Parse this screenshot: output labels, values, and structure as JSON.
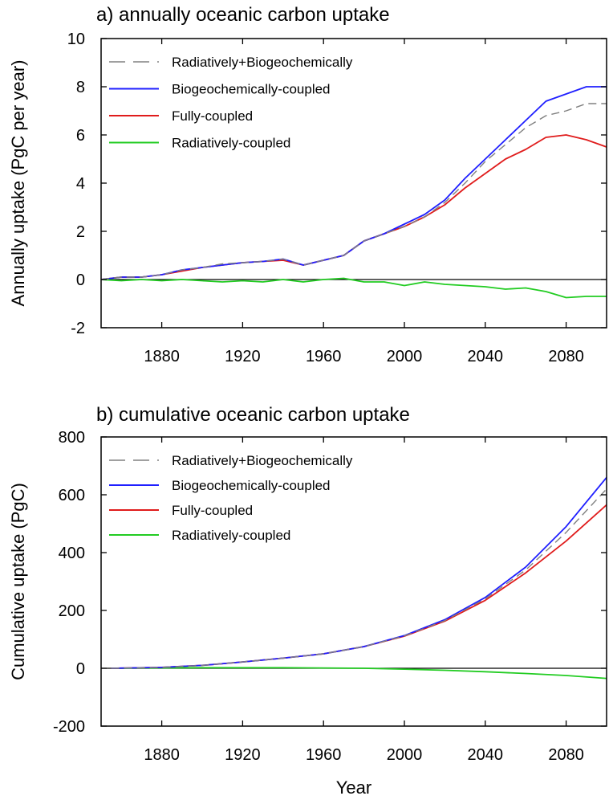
{
  "colors": {
    "rad_bio": "#808080",
    "bio": "#1f1fff",
    "full": "#e01c1c",
    "rad": "#22cc22",
    "axis": "#000000"
  },
  "chart_data": [
    {
      "type": "line",
      "title": "a) annually  oceanic carbon uptake",
      "ylabel": "Annually uptake (PgC per year)",
      "xlabel": "",
      "xlim": [
        1850,
        2100
      ],
      "ylim": [
        -2,
        10
      ],
      "xticks": [
        1880,
        1920,
        1960,
        2000,
        2040,
        2080
      ],
      "yticks": [
        -2,
        0,
        2,
        4,
        6,
        8,
        10
      ],
      "zero_line": true,
      "legend_position": "top-left",
      "series": [
        {
          "name": "Radiatively+Biogeochemically",
          "color_key": "rad_bio",
          "dashed": true,
          "points": [
            [
              1850,
              0.0
            ],
            [
              1860,
              0.1
            ],
            [
              1870,
              0.1
            ],
            [
              1880,
              0.2
            ],
            [
              1890,
              0.4
            ],
            [
              1900,
              0.5
            ],
            [
              1910,
              0.65
            ],
            [
              1920,
              0.7
            ],
            [
              1930,
              0.75
            ],
            [
              1940,
              0.85
            ],
            [
              1950,
              0.6
            ],
            [
              1960,
              0.8
            ],
            [
              1970,
              1.0
            ],
            [
              1980,
              1.6
            ],
            [
              1990,
              1.9
            ],
            [
              2000,
              2.2
            ],
            [
              2010,
              2.6
            ],
            [
              2020,
              3.2
            ],
            [
              2030,
              4.0
            ],
            [
              2040,
              4.9
            ],
            [
              2050,
              5.6
            ],
            [
              2060,
              6.3
            ],
            [
              2070,
              6.8
            ],
            [
              2080,
              7.0
            ],
            [
              2090,
              7.3
            ],
            [
              2100,
              7.3
            ]
          ]
        },
        {
          "name": "Biogeochemically-coupled",
          "color_key": "bio",
          "dashed": false,
          "points": [
            [
              1850,
              0.0
            ],
            [
              1860,
              0.1
            ],
            [
              1870,
              0.1
            ],
            [
              1880,
              0.2
            ],
            [
              1890,
              0.4
            ],
            [
              1900,
              0.5
            ],
            [
              1910,
              0.6
            ],
            [
              1920,
              0.7
            ],
            [
              1930,
              0.75
            ],
            [
              1940,
              0.85
            ],
            [
              1950,
              0.6
            ],
            [
              1960,
              0.8
            ],
            [
              1970,
              1.0
            ],
            [
              1980,
              1.6
            ],
            [
              1990,
              1.9
            ],
            [
              2000,
              2.3
            ],
            [
              2010,
              2.7
            ],
            [
              2020,
              3.3
            ],
            [
              2030,
              4.2
            ],
            [
              2040,
              5.0
            ],
            [
              2050,
              5.8
            ],
            [
              2060,
              6.6
            ],
            [
              2070,
              7.4
            ],
            [
              2080,
              7.7
            ],
            [
              2090,
              8.0
            ],
            [
              2100,
              8.0
            ]
          ]
        },
        {
          "name": "Fully-coupled",
          "color_key": "full",
          "dashed": false,
          "points": [
            [
              1850,
              0.0
            ],
            [
              1860,
              0.1
            ],
            [
              1870,
              0.1
            ],
            [
              1880,
              0.2
            ],
            [
              1890,
              0.35
            ],
            [
              1900,
              0.5
            ],
            [
              1910,
              0.6
            ],
            [
              1920,
              0.7
            ],
            [
              1930,
              0.75
            ],
            [
              1940,
              0.8
            ],
            [
              1950,
              0.6
            ],
            [
              1960,
              0.8
            ],
            [
              1970,
              1.0
            ],
            [
              1980,
              1.6
            ],
            [
              1990,
              1.9
            ],
            [
              2000,
              2.2
            ],
            [
              2010,
              2.6
            ],
            [
              2020,
              3.1
            ],
            [
              2030,
              3.8
            ],
            [
              2040,
              4.4
            ],
            [
              2050,
              5.0
            ],
            [
              2060,
              5.4
            ],
            [
              2070,
              5.9
            ],
            [
              2080,
              6.0
            ],
            [
              2090,
              5.8
            ],
            [
              2100,
              5.5
            ]
          ]
        },
        {
          "name": "Radiatively-coupled",
          "color_key": "rad",
          "dashed": false,
          "points": [
            [
              1850,
              0.0
            ],
            [
              1860,
              -0.05
            ],
            [
              1870,
              0.0
            ],
            [
              1880,
              -0.05
            ],
            [
              1890,
              0.0
            ],
            [
              1900,
              -0.05
            ],
            [
              1910,
              -0.1
            ],
            [
              1920,
              -0.05
            ],
            [
              1930,
              -0.1
            ],
            [
              1940,
              0.0
            ],
            [
              1950,
              -0.1
            ],
            [
              1960,
              0.0
            ],
            [
              1970,
              0.05
            ],
            [
              1980,
              -0.1
            ],
            [
              1990,
              -0.1
            ],
            [
              2000,
              -0.25
            ],
            [
              2010,
              -0.1
            ],
            [
              2020,
              -0.2
            ],
            [
              2030,
              -0.25
            ],
            [
              2040,
              -0.3
            ],
            [
              2050,
              -0.4
            ],
            [
              2060,
              -0.35
            ],
            [
              2070,
              -0.5
            ],
            [
              2080,
              -0.75
            ],
            [
              2090,
              -0.7
            ],
            [
              2100,
              -0.7
            ]
          ]
        }
      ]
    },
    {
      "type": "line",
      "title": "b) cumulative oceanic carbon uptake",
      "ylabel": "Cumulative uptake (PgC)",
      "xlabel": "Year",
      "xlim": [
        1850,
        2100
      ],
      "ylim": [
        -200,
        800
      ],
      "xticks": [
        1880,
        1920,
        1960,
        2000,
        2040,
        2080
      ],
      "yticks": [
        -200,
        0,
        200,
        400,
        600,
        800
      ],
      "zero_line": true,
      "legend_position": "top-left",
      "series": [
        {
          "name": "Radiatively+Biogeochemically",
          "color_key": "rad_bio",
          "dashed": true,
          "points": [
            [
              1855,
              0
            ],
            [
              1880,
              3
            ],
            [
              1900,
              10
            ],
            [
              1920,
              22
            ],
            [
              1940,
              35
            ],
            [
              1960,
              50
            ],
            [
              1980,
              75
            ],
            [
              2000,
              112
            ],
            [
              2020,
              165
            ],
            [
              2040,
              240
            ],
            [
              2060,
              340
            ],
            [
              2080,
              470
            ],
            [
              2100,
              620
            ]
          ]
        },
        {
          "name": "Biogeochemically-coupled",
          "color_key": "bio",
          "dashed": false,
          "points": [
            [
              1855,
              0
            ],
            [
              1880,
              3
            ],
            [
              1900,
              10
            ],
            [
              1920,
              22
            ],
            [
              1940,
              35
            ],
            [
              1960,
              50
            ],
            [
              1980,
              75
            ],
            [
              2000,
              113
            ],
            [
              2020,
              168
            ],
            [
              2040,
              245
            ],
            [
              2060,
              350
            ],
            [
              2080,
              490
            ],
            [
              2100,
              660
            ]
          ]
        },
        {
          "name": "Fully-coupled",
          "color_key": "full",
          "dashed": false,
          "points": [
            [
              1855,
              0
            ],
            [
              1880,
              3
            ],
            [
              1900,
              10
            ],
            [
              1920,
              22
            ],
            [
              1940,
              35
            ],
            [
              1960,
              50
            ],
            [
              1980,
              75
            ],
            [
              2000,
              111
            ],
            [
              2020,
              163
            ],
            [
              2040,
              235
            ],
            [
              2060,
              330
            ],
            [
              2080,
              440
            ],
            [
              2100,
              565
            ]
          ]
        },
        {
          "name": "Radiatively-coupled",
          "color_key": "rad",
          "dashed": false,
          "points": [
            [
              1855,
              0
            ],
            [
              1900,
              2
            ],
            [
              1940,
              2
            ],
            [
              1980,
              0
            ],
            [
              2000,
              -3
            ],
            [
              2020,
              -7
            ],
            [
              2040,
              -12
            ],
            [
              2060,
              -18
            ],
            [
              2080,
              -25
            ],
            [
              2100,
              -35
            ]
          ]
        }
      ]
    }
  ]
}
